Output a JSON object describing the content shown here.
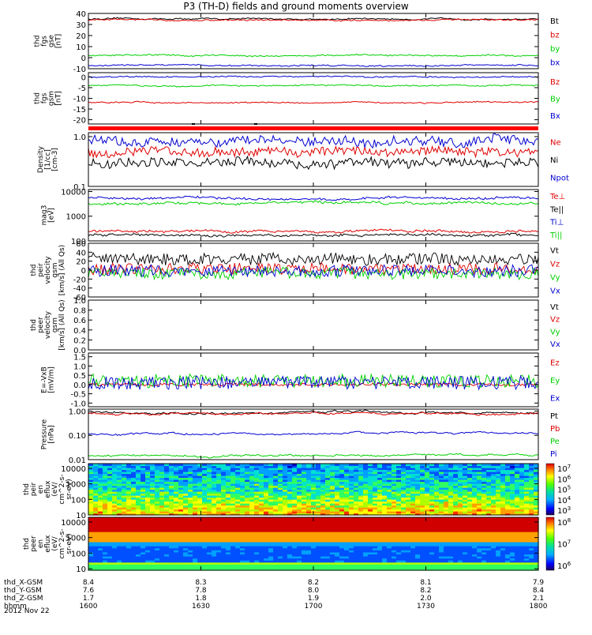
{
  "title": "P3 (TH-D) fields and ground moments overview",
  "date": "2012 Nov 22",
  "colors": {
    "black": "#000000",
    "red": "#e00000",
    "green": "#00d000",
    "blue": "#0000d0",
    "axis": "#000000",
    "bar": "#ff0000"
  },
  "time_axis": {
    "ticks": [
      "1600",
      "1630",
      "1700",
      "1730",
      "1800"
    ],
    "rows": [
      {
        "label": "thd_X-GSM",
        "values": [
          "8.4",
          "8.3",
          "8.2",
          "8.1",
          "7.9"
        ]
      },
      {
        "label": "thd_Y-GSM",
        "values": [
          "7.6",
          "7.8",
          "8.0",
          "8.2",
          "8.4"
        ]
      },
      {
        "label": "thd_Z-GSM",
        "values": [
          "1.7",
          "1.8",
          "1.9",
          "2.0",
          "2.1"
        ]
      },
      {
        "label": "hhmm",
        "values": [
          "1600",
          "1630",
          "1700",
          "1730",
          "1800"
        ]
      }
    ]
  },
  "chart_data": [
    {
      "type": "line",
      "panel": "fgs_gse",
      "ylabel": "thd\nfgs\ngse\n[nT]",
      "ylim": [
        -10,
        40
      ],
      "ticks": [
        "40",
        "30",
        "20",
        "10",
        "0",
        "-10"
      ],
      "series": [
        {
          "name": "Bt",
          "color": "black",
          "level": 35
        },
        {
          "name": "bz",
          "color": "red",
          "level": 34
        },
        {
          "name": "by",
          "color": "green",
          "level": 2
        },
        {
          "name": "bx",
          "color": "blue",
          "level": -7
        }
      ]
    },
    {
      "type": "line",
      "panel": "fgs_gsm",
      "ylabel": "thd\nfgs\ngsm\n[nT]",
      "ylim": [
        -22,
        2
      ],
      "ticks": [
        "0",
        "-5",
        "-10",
        "-15",
        "-20"
      ],
      "series": [
        {
          "name": "Bz",
          "color": "red",
          "level": -12
        },
        {
          "name": "By",
          "color": "green",
          "level": -4
        },
        {
          "name": "Bx",
          "color": "blue",
          "level": 0
        }
      ]
    },
    {
      "type": "line",
      "panel": "density",
      "ylabel": "Density\n[1/cc]\n[cm-3]",
      "scale": "log",
      "ylim": [
        0.1,
        1.2
      ],
      "ticks": [
        "1.0",
        "0.1"
      ],
      "series": [
        {
          "name": "Ne",
          "color": "red",
          "level": 0.5
        },
        {
          "name": "Ni",
          "color": "black",
          "level": 0.3
        },
        {
          "name": "Npot",
          "color": "blue",
          "level": 0.8
        }
      ]
    },
    {
      "type": "line",
      "panel": "temperature",
      "ylabel": "mag3\n[eV]",
      "scale": "log",
      "ylim": [
        100,
        12000
      ],
      "ticks": [
        "10000",
        "1000",
        "100"
      ],
      "series": [
        {
          "name": "Te⊥",
          "color": "red",
          "level": 250
        },
        {
          "name": "Te||",
          "color": "black",
          "level": 170
        },
        {
          "name": "Ti⊥",
          "color": "blue",
          "level": 5500
        },
        {
          "name": "Ti||",
          "color": "green",
          "level": 3300
        }
      ]
    },
    {
      "type": "line",
      "panel": "peir_velocity",
      "ylabel": "thd\npeir\nvelocity\ngsm\n[km/s] (All Qs)",
      "ylim": [
        -60,
        60
      ],
      "ticks": [
        "60",
        "40",
        "20",
        "0",
        "-20",
        "-40",
        "-60"
      ],
      "series": [
        {
          "name": "Vt",
          "color": "black",
          "level": 25
        },
        {
          "name": "Vz",
          "color": "red",
          "level": 3
        },
        {
          "name": "Vy",
          "color": "green",
          "level": -8
        },
        {
          "name": "Vx",
          "color": "blue",
          "level": -2
        }
      ]
    },
    {
      "type": "line",
      "panel": "peer_velocity",
      "ylabel": "thd\npeer\nvelocity\ngsm\n[km/s] (All Qs)",
      "ylim": [
        0,
        1
      ],
      "ticks": [
        "1.0",
        "0.8",
        "0.6",
        "0.4",
        "0.2",
        "0.0"
      ],
      "series": [
        {
          "name": "Vt",
          "color": "black"
        },
        {
          "name": "Vz",
          "color": "red"
        },
        {
          "name": "Vy",
          "color": "green"
        },
        {
          "name": "Vx",
          "color": "blue"
        }
      ]
    },
    {
      "type": "line",
      "panel": "efield",
      "ylabel": "E=-VxB\n[mV/m]",
      "ylim": [
        -1.2,
        1.7
      ],
      "ticks": [
        "1.5",
        "1.0",
        "0.5",
        "0.0",
        "-0.5",
        "-1.0"
      ],
      "series": [
        {
          "name": "Ez",
          "color": "red",
          "level": 0.0
        },
        {
          "name": "Ey",
          "color": "green",
          "level": 0.2
        },
        {
          "name": "Ex",
          "color": "blue",
          "level": 0.1
        }
      ]
    },
    {
      "type": "line",
      "panel": "pressure",
      "ylabel": "Pressure\n[nPa]",
      "scale": "log",
      "ylim": [
        0.01,
        1.2
      ],
      "ticks": [
        "1.00",
        "0.10",
        "0.01"
      ],
      "series": [
        {
          "name": "Pt",
          "color": "black",
          "level": 0.85
        },
        {
          "name": "Pb",
          "color": "red",
          "level": 0.8
        },
        {
          "name": "Pe",
          "color": "green",
          "level": 0.015
        },
        {
          "name": "Pi",
          "color": "blue",
          "level": 0.12
        }
      ]
    },
    {
      "type": "heatmap",
      "panel": "peir_eflux",
      "ylabel": "thd\npeir\nen\neflux\n(eV/\ncm^2-s-\nsr-eV)",
      "scale": "log",
      "ylim": [
        10,
        20000
      ],
      "ticks": [
        "10000",
        "1000",
        "100",
        "10"
      ],
      "colorbar": [
        "10^7",
        "10^6",
        "10^5",
        "10^4",
        "10^3"
      ]
    },
    {
      "type": "heatmap",
      "panel": "peer_eflux",
      "ylabel": "thd\npeer\nen\neflux\n(eV/\ncm^2-s-\nsr-eV)",
      "scale": "log",
      "ylim": [
        8,
        20000
      ],
      "ticks": [
        "10000",
        "1000",
        "100",
        "10"
      ],
      "colorbar": [
        "10^8",
        "10^7",
        "10^6"
      ]
    }
  ]
}
